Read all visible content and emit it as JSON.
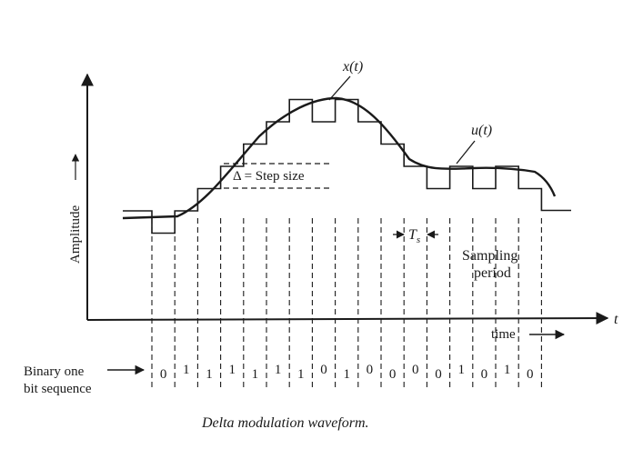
{
  "diagram": {
    "caption": "Delta modulation waveform.",
    "y_axis_label": "Amplitude",
    "x_axis_end_label": "t",
    "time_label": "time",
    "signal_label": "x(t)",
    "staircase_label": "u(t)",
    "step_size_label": "Δ = Step size",
    "sampling_interval_symbol": "T",
    "sampling_interval_subscript": "s",
    "sampling_period_label_line1": "Sampling",
    "sampling_period_label_line2": "period",
    "binary_label_line1": "Binary one",
    "binary_label_line2": "bit sequence",
    "bits": [
      "0",
      "1",
      "1",
      "1",
      "1",
      "1",
      "1",
      "0",
      "1",
      "0",
      "0",
      "0",
      "0",
      "1",
      "0",
      "1",
      "0"
    ]
  }
}
